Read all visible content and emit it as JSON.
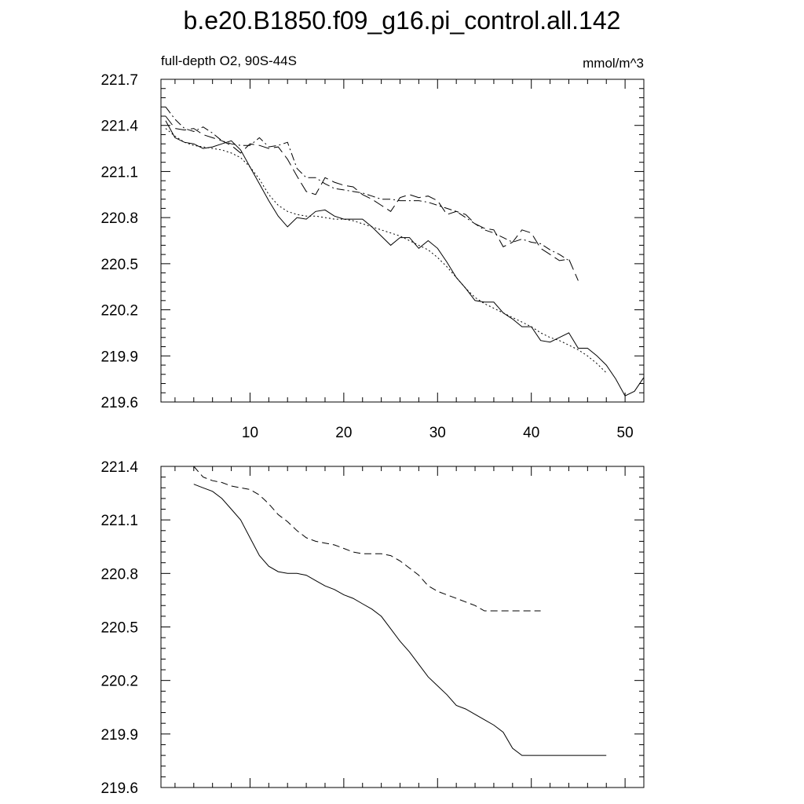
{
  "figure": {
    "title": "b.e20.B1850.f09_g16.pi_control.all.142",
    "left_subtitle": "full-depth O2, 90S-44S",
    "right_subtitle": "mmol/m^3"
  },
  "chart_data": [
    {
      "type": "line",
      "panel": "top",
      "xlim": [
        0.5,
        52.0
      ],
      "ylim": [
        219.6,
        221.7
      ],
      "x_ticks": [
        10,
        20,
        30,
        40,
        50
      ],
      "x_tick_labels": [
        "10",
        "20",
        "30",
        "40",
        "50"
      ],
      "y_ticks": [
        219.6,
        219.9,
        220.2,
        220.5,
        220.8,
        221.1,
        221.4,
        221.7
      ],
      "y_tick_labels": [
        "219.6",
        "219.9",
        "220.2",
        "220.5",
        "220.8",
        "221.1",
        "221.4",
        "221.7"
      ],
      "series": [
        {
          "style": "solid",
          "x": [
            1,
            2,
            3,
            4,
            5,
            6,
            7,
            8,
            9,
            10,
            11,
            12,
            13,
            14,
            15,
            16,
            17,
            18,
            19,
            20,
            21,
            22,
            23,
            24,
            25,
            26,
            27,
            28,
            29,
            30,
            31,
            32,
            33,
            34,
            35,
            36,
            37,
            38,
            39,
            40,
            41,
            42,
            43,
            44,
            45,
            46,
            47,
            48,
            49,
            50,
            51,
            52
          ],
          "y": [
            221.43,
            221.32,
            221.29,
            221.28,
            221.25,
            221.26,
            221.28,
            221.3,
            221.24,
            221.13,
            221.02,
            220.91,
            220.81,
            220.74,
            220.8,
            220.79,
            220.84,
            220.85,
            220.81,
            220.79,
            220.79,
            220.79,
            220.74,
            220.68,
            220.62,
            220.67,
            220.67,
            220.6,
            220.65,
            220.6,
            220.51,
            220.41,
            220.34,
            220.26,
            220.25,
            220.25,
            220.18,
            220.14,
            220.09,
            220.09,
            220.0,
            219.99,
            220.02,
            220.05,
            219.95,
            219.95,
            219.9,
            219.84,
            219.75,
            219.64,
            219.67,
            219.76
          ]
        },
        {
          "style": "long-dash",
          "x": [
            1,
            2,
            3,
            4,
            5,
            6,
            7,
            8,
            9,
            10,
            11,
            12,
            13,
            14,
            15,
            16,
            17,
            18,
            19,
            20,
            21,
            22,
            23,
            24,
            25,
            26,
            27,
            28,
            29,
            30,
            31,
            32,
            33,
            34,
            35,
            36,
            37,
            38,
            39,
            40,
            41,
            42,
            43,
            44,
            45
          ],
          "y": [
            221.46,
            221.38,
            221.37,
            221.38,
            221.34,
            221.32,
            221.3,
            221.27,
            221.22,
            221.28,
            221.27,
            221.25,
            221.26,
            221.18,
            221.07,
            220.97,
            220.95,
            221.06,
            221.03,
            221.01,
            221.0,
            220.95,
            220.92,
            220.88,
            220.84,
            220.93,
            220.95,
            220.93,
            220.94,
            220.91,
            220.82,
            220.84,
            220.82,
            220.76,
            220.73,
            220.72,
            220.61,
            220.64,
            220.72,
            220.7,
            220.6,
            220.56,
            220.52,
            220.53,
            220.39
          ]
        },
        {
          "style": "dash-dot",
          "x": [
            1,
            2,
            3,
            4,
            5,
            6,
            7,
            8,
            9,
            10,
            11,
            12,
            13,
            14,
            15,
            16,
            17,
            18,
            19,
            20,
            21,
            22,
            23,
            24,
            25,
            26,
            27,
            28,
            29,
            30,
            31,
            32,
            33,
            34,
            35,
            36,
            37,
            38,
            39,
            40,
            41,
            42,
            43,
            44
          ],
          "y": [
            221.52,
            221.44,
            221.38,
            221.36,
            221.39,
            221.35,
            221.3,
            221.28,
            221.27,
            221.27,
            221.32,
            221.26,
            221.27,
            221.29,
            221.12,
            221.06,
            221.06,
            221.02,
            220.99,
            220.98,
            220.97,
            220.96,
            220.94,
            220.92,
            220.92,
            220.91,
            220.91,
            220.91,
            220.9,
            220.88,
            220.86,
            220.84,
            220.8,
            220.76,
            220.72,
            220.7,
            220.67,
            220.64,
            220.66,
            220.64,
            220.63,
            220.59,
            220.56,
            220.52
          ]
        },
        {
          "style": "dotted",
          "x": [
            1,
            2,
            3,
            4,
            5,
            6,
            7,
            8,
            9,
            10,
            11,
            12,
            13,
            14,
            15,
            16,
            17,
            18,
            19,
            20,
            21,
            22,
            23,
            24,
            25,
            26,
            27,
            28,
            29,
            30,
            31,
            32,
            33,
            34,
            35,
            36,
            37,
            38,
            39,
            40,
            41,
            42,
            43,
            44,
            45,
            46,
            47,
            48
          ],
          "y": [
            221.38,
            221.33,
            221.29,
            221.27,
            221.26,
            221.25,
            221.24,
            221.22,
            221.19,
            221.13,
            221.05,
            220.95,
            220.88,
            220.84,
            220.82,
            220.81,
            220.81,
            220.8,
            220.79,
            220.79,
            220.78,
            220.76,
            220.74,
            220.72,
            220.7,
            220.68,
            220.65,
            220.62,
            220.59,
            220.54,
            220.48,
            220.41,
            220.34,
            220.28,
            220.24,
            220.21,
            220.18,
            220.15,
            220.12,
            220.09,
            220.05,
            220.02,
            220.0,
            219.97,
            219.94,
            219.9,
            219.85,
            219.79
          ]
        }
      ]
    },
    {
      "type": "line",
      "panel": "bottom",
      "xlim": [
        0.5,
        52.0
      ],
      "ylim": [
        219.6,
        221.4
      ],
      "x_ticks": [
        10,
        20,
        30,
        40,
        50
      ],
      "y_ticks": [
        219.6,
        219.9,
        220.2,
        220.5,
        220.8,
        221.1,
        221.4
      ],
      "y_tick_labels": [
        "219.6",
        "219.9",
        "220.2",
        "220.5",
        "220.8",
        "221.1",
        "221.4"
      ],
      "series": [
        {
          "style": "solid",
          "x": [
            4,
            5,
            6,
            7,
            8,
            9,
            10,
            11,
            12,
            13,
            14,
            15,
            16,
            17,
            18,
            19,
            20,
            21,
            22,
            23,
            24,
            25,
            26,
            27,
            28,
            29,
            30,
            31,
            32,
            33,
            34,
            35,
            36,
            37,
            38,
            39,
            40,
            41,
            42,
            43,
            44,
            45,
            46,
            47,
            48
          ],
          "y": [
            221.3,
            221.28,
            221.26,
            221.22,
            221.16,
            221.1,
            221.0,
            220.9,
            220.84,
            220.81,
            220.8,
            220.8,
            220.79,
            220.76,
            220.73,
            220.71,
            220.68,
            220.66,
            220.63,
            220.6,
            220.56,
            220.49,
            220.42,
            220.36,
            220.29,
            220.22,
            220.17,
            220.12,
            220.06,
            220.04,
            220.01,
            219.98,
            219.95,
            219.91,
            219.82,
            219.78,
            219.78,
            219.78,
            219.78,
            219.78,
            219.78,
            219.78,
            219.78,
            219.78,
            219.78
          ]
        },
        {
          "style": "dashed",
          "x": [
            4,
            5,
            6,
            7,
            8,
            9,
            10,
            11,
            12,
            13,
            14,
            15,
            16,
            17,
            18,
            19,
            20,
            21,
            22,
            23,
            24,
            25,
            26,
            27,
            28,
            29,
            30,
            31,
            32,
            33,
            34,
            35,
            36,
            37,
            38,
            39,
            40,
            41
          ],
          "y": [
            221.4,
            221.34,
            221.32,
            221.31,
            221.29,
            221.28,
            221.27,
            221.24,
            221.19,
            221.13,
            221.09,
            221.04,
            221.0,
            220.98,
            220.97,
            220.96,
            220.94,
            220.92,
            220.91,
            220.91,
            220.91,
            220.9,
            220.87,
            220.83,
            220.79,
            220.73,
            220.7,
            220.68,
            220.66,
            220.64,
            220.62,
            220.59,
            220.59,
            220.59,
            220.59,
            220.59,
            220.59,
            220.59
          ]
        }
      ]
    }
  ]
}
